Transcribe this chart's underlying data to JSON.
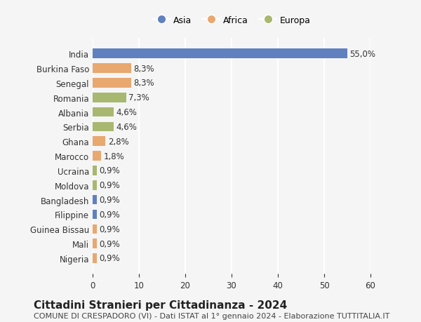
{
  "categories": [
    "India",
    "Burkina Faso",
    "Senegal",
    "Romania",
    "Albania",
    "Serbia",
    "Ghana",
    "Marocco",
    "Ucraina",
    "Moldova",
    "Bangladesh",
    "Filippine",
    "Guinea Bissau",
    "Mali",
    "Nigeria"
  ],
  "values": [
    55.0,
    8.3,
    8.3,
    7.3,
    4.6,
    4.6,
    2.8,
    1.8,
    0.9,
    0.9,
    0.9,
    0.9,
    0.9,
    0.9,
    0.9
  ],
  "labels": [
    "55,0%",
    "8,3%",
    "8,3%",
    "7,3%",
    "4,6%",
    "4,6%",
    "2,8%",
    "1,8%",
    "0,9%",
    "0,9%",
    "0,9%",
    "0,9%",
    "0,9%",
    "0,9%",
    "0,9%"
  ],
  "continents": [
    "Asia",
    "Africa",
    "Africa",
    "Europa",
    "Europa",
    "Europa",
    "Africa",
    "Africa",
    "Europa",
    "Europa",
    "Asia",
    "Asia",
    "Africa",
    "Africa",
    "Africa"
  ],
  "continent_colors": {
    "Asia": "#6080C0",
    "Africa": "#E8A870",
    "Europa": "#A8B870"
  },
  "legend_order": [
    "Asia",
    "Africa",
    "Europa"
  ],
  "xlim": [
    0,
    60
  ],
  "xticks": [
    0,
    10,
    20,
    30,
    40,
    50,
    60
  ],
  "title": "Cittadini Stranieri per Cittadinanza - 2024",
  "subtitle": "COMUNE DI CRESPADORO (VI) - Dati ISTAT al 1° gennaio 2024 - Elaborazione TUTTITALIA.IT",
  "background_color": "#f5f5f5",
  "grid_color": "#ffffff",
  "bar_height": 0.65,
  "title_fontsize": 11,
  "subtitle_fontsize": 8,
  "tick_fontsize": 8.5,
  "label_fontsize": 8.5
}
